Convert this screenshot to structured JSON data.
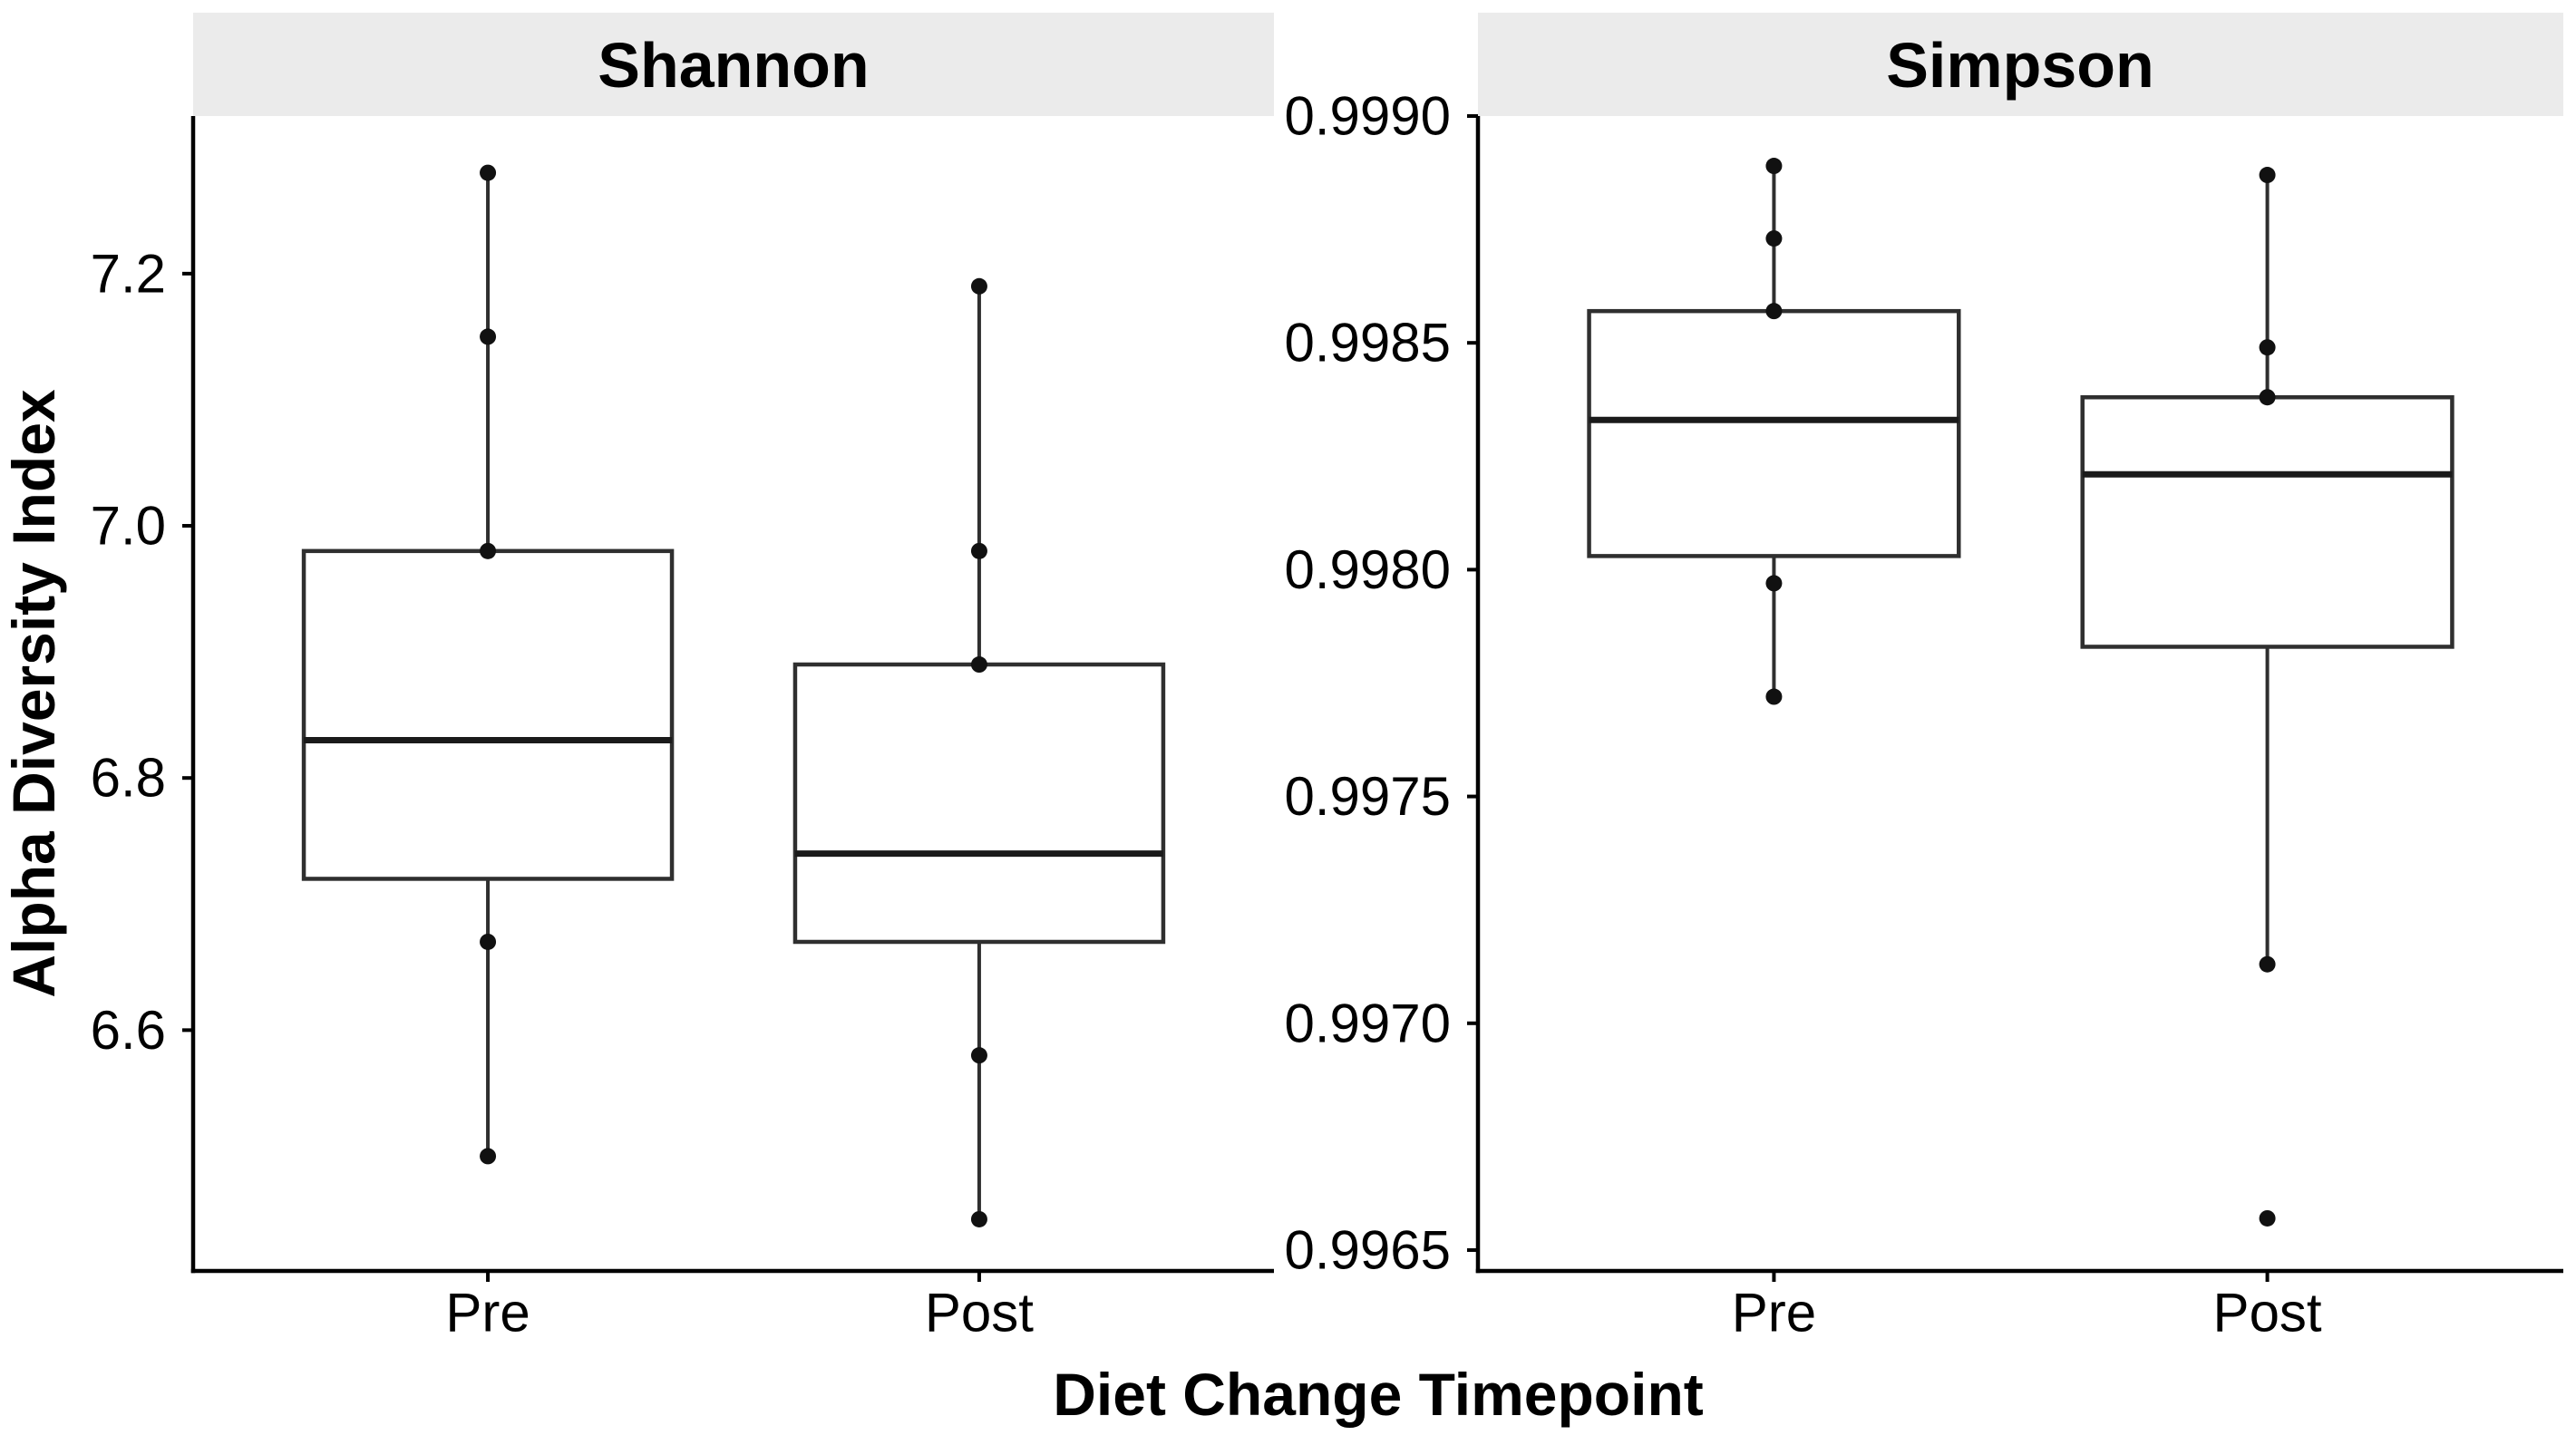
{
  "figure": {
    "xlabel": "Diet Change Timepoint",
    "ylabel": "Alpha Diversity Index"
  },
  "colors": {
    "background": "#ffffff",
    "strip_background": "#ebebeb",
    "strip_text": "#000000",
    "axis_line": "#000000",
    "tick_text": "#000000",
    "box_border": "#2f2f2f",
    "box_fill": "#ffffff",
    "median_line": "#1a1a1a",
    "whisker": "#2f2f2f",
    "point": "#111111"
  },
  "chart_data": [
    {
      "type": "boxplot",
      "panel": "Shannon",
      "categories": [
        "Pre",
        "Post"
      ],
      "xlabel": "Diet Change Timepoint",
      "ylabel": "Alpha Diversity Index",
      "ylim": [
        6.409,
        7.325
      ],
      "yticks": [
        6.6,
        6.8,
        7.0,
        7.2
      ],
      "ytick_labels": [
        "6.6",
        "6.8",
        "7.0",
        "7.2"
      ],
      "grid": false,
      "legend": "none",
      "boxes": [
        {
          "category": "Pre",
          "q1": 6.72,
          "median": 6.83,
          "q3": 6.98,
          "whisker_low": 6.5,
          "whisker_high": 7.28,
          "points": [
            7.28,
            7.15,
            6.98,
            6.67,
            6.5
          ],
          "outliers": []
        },
        {
          "category": "Post",
          "q1": 6.67,
          "median": 6.74,
          "q3": 6.89,
          "whisker_low": 6.45,
          "whisker_high": 7.19,
          "points": [
            7.19,
            6.98,
            6.89,
            6.58,
            6.45
          ],
          "outliers": []
        }
      ]
    },
    {
      "type": "boxplot",
      "panel": "Simpson",
      "categories": [
        "Pre",
        "Post"
      ],
      "xlabel": "Diet Change Timepoint",
      "ylabel": "Alpha Diversity Index",
      "ylim": [
        0.996454,
        0.999
      ],
      "yticks": [
        0.9965,
        0.997,
        0.9975,
        0.998,
        0.9985,
        0.999
      ],
      "ytick_labels": [
        "0.9965",
        "0.9970",
        "0.9975",
        "0.9980",
        "0.9985",
        "0.9990"
      ],
      "grid": false,
      "legend": "none",
      "boxes": [
        {
          "category": "Pre",
          "q1": 0.99803,
          "median": 0.99833,
          "q3": 0.99857,
          "whisker_low": 0.99772,
          "whisker_high": 0.99889,
          "points": [
            0.99889,
            0.99873,
            0.99857,
            0.99797,
            0.99772
          ],
          "outliers": []
        },
        {
          "category": "Post",
          "q1": 0.99783,
          "median": 0.99821,
          "q3": 0.99838,
          "whisker_low": 0.99713,
          "whisker_high": 0.99887,
          "points": [
            0.99887,
            0.99849,
            0.99838,
            0.99713,
            0.99657
          ],
          "outliers": [
            0.99657
          ]
        }
      ]
    }
  ]
}
